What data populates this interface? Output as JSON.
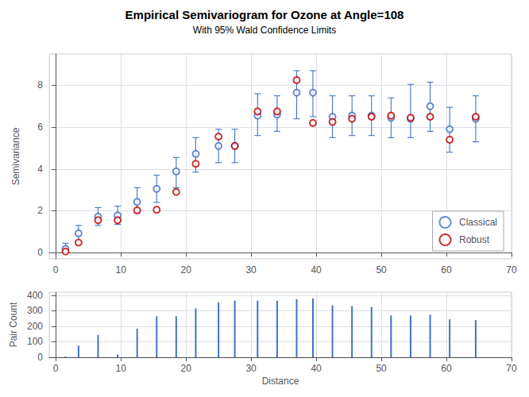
{
  "chart_data": [
    {
      "type": "scatter",
      "title": "Empirical Semivariogram for Ozone at Angle=108",
      "subtitle": "With 95% Wald Confidence Limits",
      "ylabel": "Semivariance",
      "x": [
        1.5,
        3.5,
        6.5,
        9.5,
        12.5,
        15.5,
        18.5,
        21.5,
        25,
        27.5,
        31,
        34,
        37,
        39.5,
        42.5,
        45.5,
        48.5,
        51.5,
        54.5,
        57.5,
        60.5,
        64.5
      ],
      "series": [
        {
          "name": "Classical",
          "color": "#4472C4",
          "marker": "circle",
          "values": [
            0.18,
            0.92,
            1.72,
            1.78,
            2.42,
            3.05,
            3.88,
            4.72,
            5.1,
            5.1,
            6.55,
            6.6,
            7.65,
            7.65,
            6.5,
            6.55,
            6.55,
            6.45,
            6.4,
            7.0,
            5.9,
            6.4
          ],
          "lower": [
            0.0,
            0.55,
            1.3,
            1.35,
            1.9,
            2.4,
            3.1,
            3.85,
            4.3,
            4.3,
            5.6,
            5.8,
            6.4,
            6.5,
            5.5,
            5.6,
            5.6,
            5.5,
            5.5,
            5.8,
            4.8,
            5.3
          ],
          "upper": [
            0.45,
            1.3,
            2.15,
            2.22,
            3.1,
            3.7,
            4.55,
            5.5,
            5.9,
            5.9,
            7.6,
            7.5,
            8.7,
            8.7,
            7.5,
            7.5,
            7.5,
            7.4,
            8.05,
            8.15,
            6.95,
            7.5
          ]
        },
        {
          "name": "Robust",
          "color": "#C00000",
          "marker": "circle",
          "values": [
            0.05,
            0.48,
            1.55,
            1.55,
            2.02,
            2.05,
            2.9,
            4.25,
            5.55,
            5.1,
            6.75,
            6.75,
            8.25,
            6.2,
            6.25,
            6.4,
            6.5,
            6.55,
            6.45,
            6.5,
            5.4,
            6.5
          ]
        }
      ],
      "xlim": [
        -1,
        70
      ],
      "xticks": [
        0,
        10,
        20,
        30,
        40,
        50,
        60,
        70
      ],
      "ylim": [
        -0.3,
        9.5
      ],
      "yticks": [
        0,
        2,
        4,
        6,
        8
      ],
      "grid": true,
      "legend": "lower right"
    },
    {
      "type": "bar",
      "xlabel": "Distance",
      "ylabel": "Pair Count",
      "x": [
        1.5,
        3.5,
        6.5,
        9.5,
        12.5,
        15.5,
        18.5,
        21.5,
        25,
        27.5,
        31,
        34,
        37,
        39.5,
        42.5,
        45.5,
        48.5,
        51.5,
        54.5,
        57.5,
        60.5,
        64.5
      ],
      "values": [
        5,
        75,
        145,
        18,
        185,
        265,
        265,
        315,
        355,
        365,
        365,
        365,
        375,
        380,
        335,
        330,
        325,
        270,
        270,
        275,
        245,
        240
      ],
      "color": "#4472C4",
      "xlim": [
        -1,
        70
      ],
      "xticks": [
        0,
        10,
        20,
        30,
        40,
        50,
        60,
        70
      ],
      "ylim": [
        0,
        420
      ],
      "yticks": [
        0,
        100,
        200,
        300,
        400
      ],
      "grid": true
    }
  ]
}
